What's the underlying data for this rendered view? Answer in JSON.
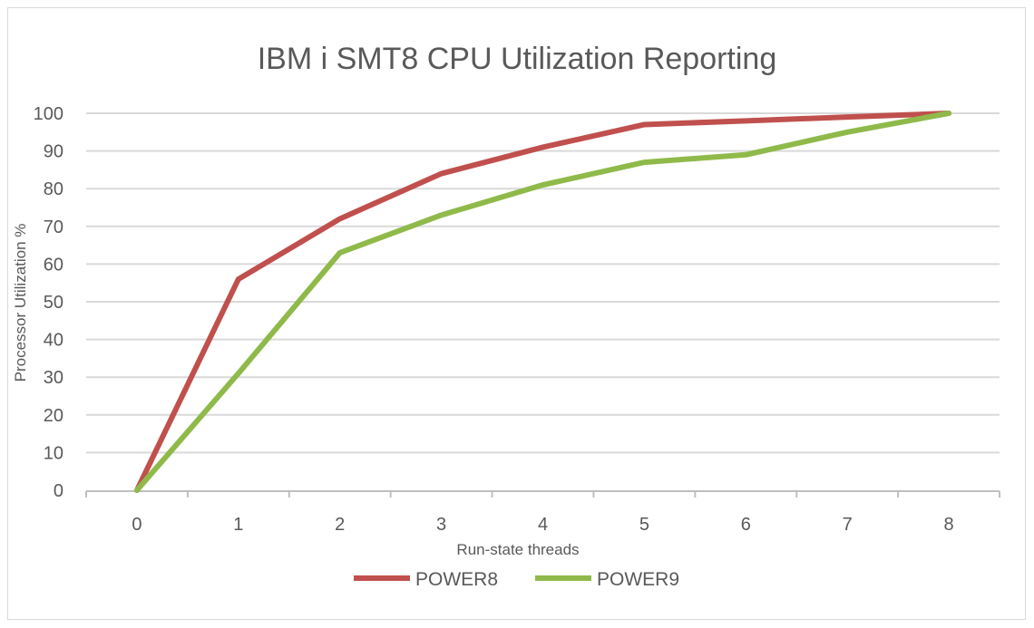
{
  "chart_data": {
    "type": "line",
    "title": "IBM i SMT8 CPU Utilization Reporting",
    "xlabel": "Run-state threads",
    "ylabel": "Processor Utilization %",
    "categories": [
      "0",
      "1",
      "2",
      "3",
      "4",
      "5",
      "6",
      "7",
      "8"
    ],
    "ylim": [
      0,
      100
    ],
    "yticks": [
      0,
      10,
      20,
      30,
      40,
      50,
      60,
      70,
      80,
      90,
      100
    ],
    "grid": true,
    "legend_position": "bottom",
    "series": [
      {
        "name": "POWER8",
        "color": "#c0504d",
        "values": [
          0,
          56,
          72,
          84,
          91,
          97,
          98,
          99,
          100
        ]
      },
      {
        "name": "POWER9",
        "color": "#8fba4a",
        "values": [
          0,
          31,
          63,
          73,
          81,
          87,
          89,
          95,
          100
        ]
      }
    ]
  }
}
